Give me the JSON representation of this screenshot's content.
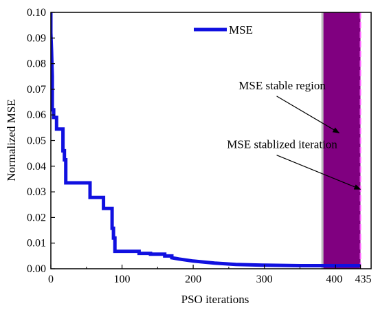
{
  "chart_data": {
    "type": "line",
    "xlabel": "PSO iterations",
    "ylabel": "Normalized MSE",
    "xlim": [
      0,
      450
    ],
    "ylim": [
      0,
      0.1
    ],
    "x_ticks": [
      0,
      100,
      200,
      300,
      400,
      435
    ],
    "x_tick_labels": [
      "0",
      "100",
      "200",
      "300",
      "400",
      "435"
    ],
    "y_ticks": [
      0.0,
      0.01,
      0.02,
      0.03,
      0.04,
      0.05,
      0.06,
      0.07,
      0.08,
      0.09,
      0.1
    ],
    "y_tick_labels": [
      "0.00",
      "0.01",
      "0.02",
      "0.03",
      "0.04",
      "0.05",
      "0.06",
      "0.07",
      "0.08",
      "0.09",
      "0.10"
    ],
    "legend": {
      "position": "top-center",
      "entries": [
        "MSE"
      ]
    },
    "series": [
      {
        "name": "MSE",
        "color": "#1010e0",
        "x": [
          0,
          0,
          1,
          2,
          2,
          4,
          4,
          8,
          8,
          17,
          17,
          19,
          19,
          21,
          21,
          55,
          55,
          74,
          74,
          86,
          86,
          88,
          88,
          90,
          90,
          92,
          92,
          124,
          124,
          140,
          140,
          160,
          160,
          170,
          170,
          180,
          200,
          230,
          260,
          300,
          350,
          383,
          400,
          435
        ],
        "y": [
          0.1,
          0.092,
          0.085,
          0.075,
          0.062,
          0.062,
          0.059,
          0.059,
          0.0545,
          0.0545,
          0.046,
          0.046,
          0.0425,
          0.0425,
          0.0335,
          0.0335,
          0.0278,
          0.0278,
          0.0235,
          0.0235,
          0.0158,
          0.0158,
          0.012,
          0.012,
          0.0068,
          0.0068,
          0.0068,
          0.0068,
          0.006,
          0.006,
          0.0057,
          0.0057,
          0.005,
          0.005,
          0.0043,
          0.0038,
          0.003,
          0.0022,
          0.0017,
          0.0014,
          0.0012,
          0.0012,
          0.0012,
          0.0012
        ]
      }
    ],
    "stable_region": {
      "x_start": 383,
      "x_end": 435,
      "color": "#800080",
      "edge_color": "#bbbbbb"
    },
    "stabilized_line": {
      "x": 435,
      "color": "#ff66ff"
    },
    "annotations": [
      {
        "text": "MSE stable region",
        "arrow_to": [
          405,
          0.053
        ],
        "text_anchor": [
          325,
          0.07
        ]
      },
      {
        "text": "MSE stablized iteration",
        "arrow_to": [
          435,
          0.031
        ],
        "text_anchor": [
          325,
          0.047
        ]
      }
    ]
  }
}
